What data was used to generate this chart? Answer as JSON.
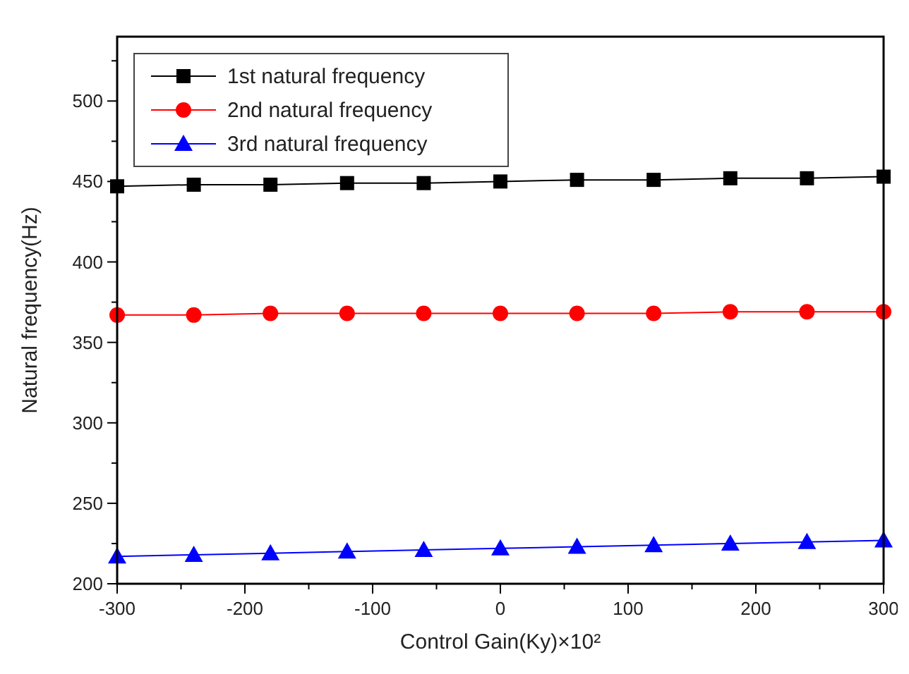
{
  "chart_data": {
    "type": "line",
    "xlabel": "Control Gain(Ky)×10²",
    "ylabel": "Natural frequency(Hz)",
    "x": [
      -300,
      -240,
      -180,
      -120,
      -60,
      0,
      60,
      120,
      180,
      240,
      300
    ],
    "series": [
      {
        "name": "1st natural frequency",
        "color": "#000000",
        "marker": "square",
        "values": [
          447,
          448,
          448,
          449,
          449,
          450,
          451,
          451,
          452,
          452,
          453
        ]
      },
      {
        "name": "2nd natural frequency",
        "color": "#ff0000",
        "marker": "circle",
        "values": [
          367,
          367,
          368,
          368,
          368,
          368,
          368,
          368,
          369,
          369,
          369
        ]
      },
      {
        "name": "3rd natural frequency",
        "color": "#0000ff",
        "marker": "triangle",
        "values": [
          217,
          218,
          219,
          220,
          221,
          222,
          223,
          224,
          225,
          226,
          227
        ]
      }
    ],
    "xlim": [
      -300,
      300
    ],
    "xticks": [
      -300,
      {
        "value": -250,
        "label": null
      },
      -200,
      {
        "value": -150,
        "label": null
      },
      -100,
      {
        "value": -50,
        "label": null
      },
      0,
      {
        "value": 50,
        "label": null
      },
      100,
      {
        "value": 150,
        "label": null
      },
      200,
      {
        "value": 250,
        "label": null
      },
      300
    ],
    "ylim": [
      200,
      540
    ],
    "yticks": [
      200,
      {
        "value": 225,
        "label": null
      },
      250,
      {
        "value": 275,
        "label": null
      },
      300,
      {
        "value": 325,
        "label": null
      },
      350,
      {
        "value": 375,
        "label": null
      },
      400,
      {
        "value": 425,
        "label": null
      },
      450,
      {
        "value": 475,
        "label": null
      },
      500,
      {
        "value": 525,
        "label": null
      }
    ],
    "legend": "top left",
    "grid": false
  }
}
